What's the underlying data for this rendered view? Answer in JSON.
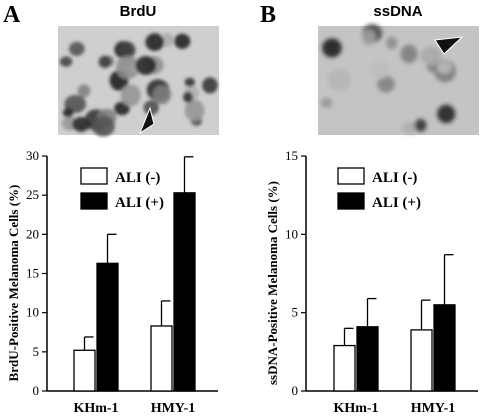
{
  "panels": [
    {
      "letter": "A",
      "title": "BrdU",
      "micrograph": "brdu-stained-melanoma-cells-micrograph"
    },
    {
      "letter": "B",
      "title": "ssDNA",
      "micrograph": "ssdna-stained-melanoma-cells-micrograph"
    }
  ],
  "chart_data": [
    {
      "type": "bar",
      "panel": "A",
      "title": "BrdU",
      "ylabel": "BrdU-Positive Melanoma Cells (%)",
      "xlabel": "",
      "categories": [
        "KHm-1",
        "HMY-1"
      ],
      "series": [
        {
          "name": "ALI (-)",
          "values": [
            5.2,
            8.3
          ],
          "errors": [
            1.7,
            3.2
          ],
          "fill": "#ffffff"
        },
        {
          "name": "ALI (+)",
          "values": [
            16.3,
            25.3
          ],
          "errors": [
            3.7,
            4.6
          ],
          "fill": "#000000"
        }
      ],
      "ylim": [
        0,
        30
      ],
      "yticks": [
        0,
        5,
        10,
        15,
        20,
        25,
        30
      ],
      "grid": false,
      "legend": "top-left"
    },
    {
      "type": "bar",
      "panel": "B",
      "title": "ssDNA",
      "ylabel": "ssDNA-Positive Melanoma Cells (%)",
      "xlabel": "",
      "categories": [
        "KHm-1",
        "HMY-1"
      ],
      "series": [
        {
          "name": "ALI (-)",
          "values": [
            2.9,
            3.9
          ],
          "errors": [
            1.1,
            1.9
          ],
          "fill": "#ffffff"
        },
        {
          "name": "ALI (+)",
          "values": [
            4.1,
            5.5
          ],
          "errors": [
            1.8,
            3.2
          ],
          "fill": "#000000"
        }
      ],
      "ylim": [
        0,
        15
      ],
      "yticks": [
        0,
        5,
        10,
        15
      ],
      "grid": false,
      "legend": "top-left"
    }
  ]
}
